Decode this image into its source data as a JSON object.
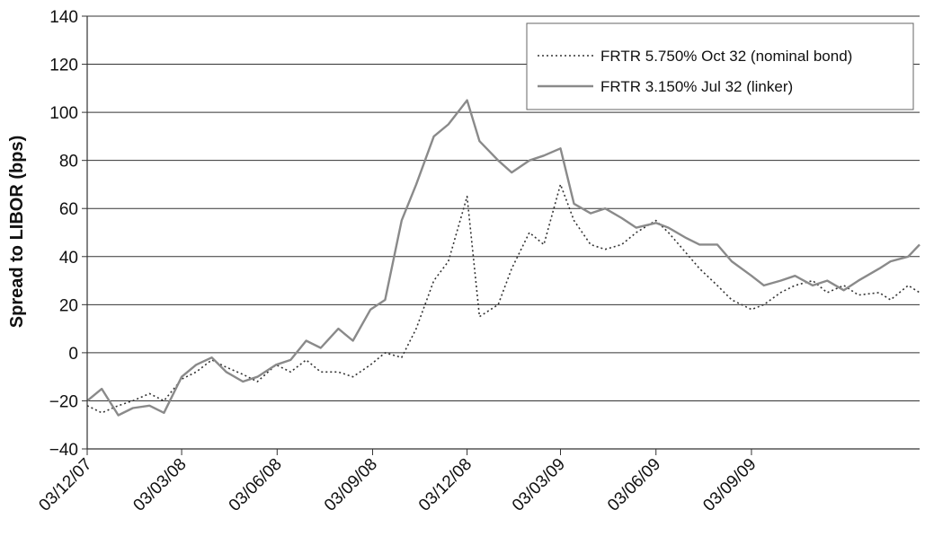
{
  "chart_data": {
    "type": "line",
    "xlabel": "",
    "ylabel": "Spread to LIBOR (bps)",
    "ylim": [
      -40,
      140
    ],
    "yticks": [
      -40,
      -20,
      0,
      20,
      40,
      60,
      80,
      100,
      120,
      140
    ],
    "ytick_labels": [
      "−40",
      "−20",
      "0",
      "20",
      "40",
      "60",
      "80",
      "100",
      "120",
      "140"
    ],
    "xlim": [
      "2007-12-03",
      "2010-02-12"
    ],
    "xticks": [
      "2007-12-03",
      "2008-03-03",
      "2008-06-03",
      "2008-09-03",
      "2008-12-03",
      "2009-03-03",
      "2009-06-03",
      "2009-09-03"
    ],
    "xtick_labels": [
      "03/12/07",
      "03/03/08",
      "03/06/08",
      "03/09/08",
      "03/12/08",
      "03/03/09",
      "03/06/09",
      "03/09/09"
    ],
    "grid": "horizontal",
    "legend_position": "top-right",
    "series": [
      {
        "name": "FRTR 5.750% Oct 32 (nominal bond)",
        "style": "dotted",
        "color": "#333333",
        "x": [
          "2007-12-03",
          "2007-12-17",
          "2008-01-02",
          "2008-01-16",
          "2008-02-01",
          "2008-02-15",
          "2008-03-03",
          "2008-03-17",
          "2008-04-01",
          "2008-04-15",
          "2008-05-01",
          "2008-05-15",
          "2008-06-02",
          "2008-06-16",
          "2008-07-01",
          "2008-07-15",
          "2008-08-01",
          "2008-08-15",
          "2008-09-01",
          "2008-09-15",
          "2008-10-01",
          "2008-10-15",
          "2008-11-01",
          "2008-11-15",
          "2008-12-03",
          "2008-12-15",
          "2009-01-02",
          "2009-01-15",
          "2009-02-01",
          "2009-02-15",
          "2009-03-03",
          "2009-03-16",
          "2009-04-01",
          "2009-04-15",
          "2009-05-01",
          "2009-05-15",
          "2009-06-03",
          "2009-06-15",
          "2009-07-01",
          "2009-07-15",
          "2009-08-01",
          "2009-08-15",
          "2009-09-03",
          "2009-09-15",
          "2009-10-01",
          "2009-10-15",
          "2009-11-01",
          "2009-11-15",
          "2009-12-01",
          "2009-12-15",
          "2010-01-04",
          "2010-01-15",
          "2010-02-01",
          "2010-02-12"
        ],
        "y": [
          -22,
          -25,
          -22,
          -20,
          -17,
          -20,
          -11,
          -8,
          -3,
          -6,
          -9,
          -12,
          -5,
          -8,
          -3,
          -8,
          -8,
          -10,
          -5,
          0,
          -2,
          10,
          30,
          38,
          65,
          15,
          20,
          35,
          50,
          45,
          70,
          55,
          45,
          43,
          45,
          50,
          55,
          50,
          42,
          35,
          28,
          22,
          18,
          20,
          25,
          28,
          30,
          25,
          28,
          24,
          25,
          22,
          28,
          25
        ]
      },
      {
        "name": "FRTR 3.150% Jul 32 (linker)",
        "style": "solid",
        "color": "#8a8a8a",
        "x": [
          "2007-12-03",
          "2007-12-17",
          "2008-01-02",
          "2008-01-16",
          "2008-02-01",
          "2008-02-15",
          "2008-03-03",
          "2008-03-17",
          "2008-04-01",
          "2008-04-15",
          "2008-05-01",
          "2008-05-15",
          "2008-06-02",
          "2008-06-16",
          "2008-07-01",
          "2008-07-15",
          "2008-08-01",
          "2008-08-15",
          "2008-09-01",
          "2008-09-15",
          "2008-10-01",
          "2008-10-15",
          "2008-11-01",
          "2008-11-15",
          "2008-12-03",
          "2008-12-15",
          "2009-01-02",
          "2009-01-15",
          "2009-02-01",
          "2009-02-15",
          "2009-03-03",
          "2009-03-16",
          "2009-04-01",
          "2009-04-15",
          "2009-05-01",
          "2009-05-15",
          "2009-06-03",
          "2009-06-15",
          "2009-07-01",
          "2009-07-15",
          "2009-08-01",
          "2009-08-15",
          "2009-09-03",
          "2009-09-15",
          "2009-10-01",
          "2009-10-15",
          "2009-11-01",
          "2009-11-15",
          "2009-12-01",
          "2009-12-15",
          "2010-01-04",
          "2010-01-15",
          "2010-02-01",
          "2010-02-12"
        ],
        "y": [
          -20,
          -15,
          -26,
          -23,
          -22,
          -25,
          -10,
          -5,
          -2,
          -8,
          -12,
          -10,
          -5,
          -3,
          5,
          2,
          10,
          5,
          18,
          22,
          55,
          70,
          90,
          95,
          105,
          88,
          80,
          75,
          80,
          82,
          85,
          62,
          58,
          60,
          56,
          52,
          54,
          52,
          48,
          45,
          45,
          38,
          32,
          28,
          30,
          32,
          28,
          30,
          26,
          30,
          35,
          38,
          40,
          45
        ]
      }
    ]
  }
}
